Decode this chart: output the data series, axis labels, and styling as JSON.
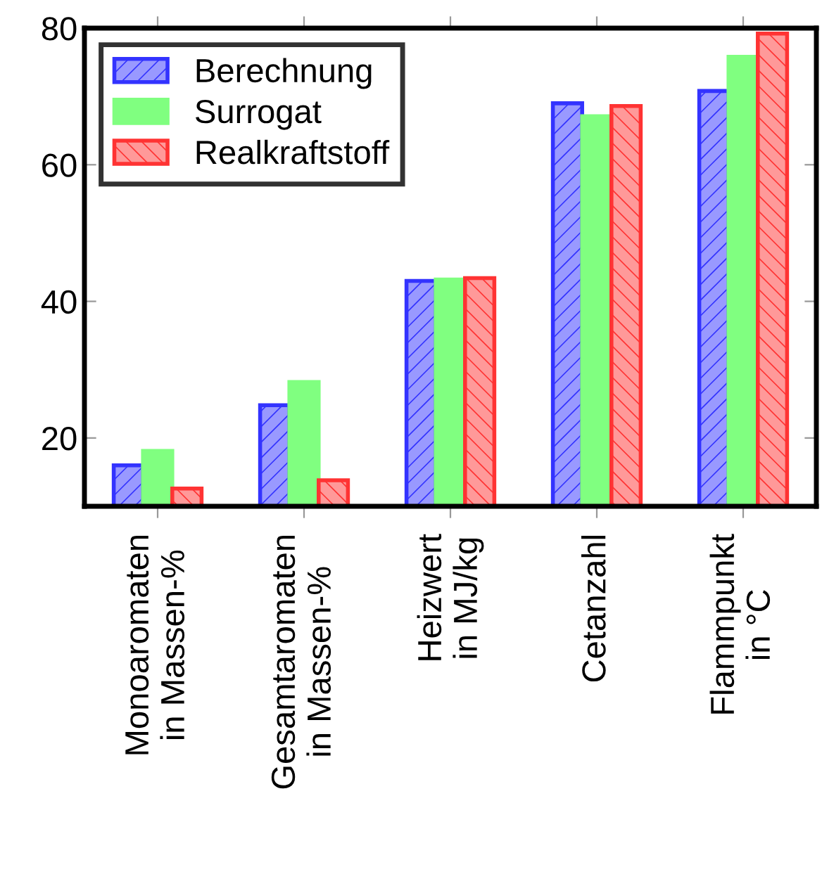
{
  "chart_data": {
    "type": "bar",
    "categories": [
      "Monoaromaten\nin Massen-%",
      "Gesamtaromaten\nin Massen-%",
      "Heizwert\nin MJ/kg",
      "Cetanzahl",
      "Flammpunkt\nin °C"
    ],
    "series": [
      {
        "name": "Berechnung",
        "color": "#3333ff",
        "values": [
          16.0,
          24.8,
          43.0,
          69.0,
          70.8
        ]
      },
      {
        "name": "Surrogat",
        "color": "#80ff80",
        "values": [
          18.1,
          28.2,
          43.2,
          67.1,
          75.8
        ]
      },
      {
        "name": "Realkraftstoff",
        "color": "#ff3333",
        "values": [
          12.6,
          13.8,
          43.4,
          68.6,
          79.2
        ]
      }
    ],
    "ylim": [
      10,
      80
    ],
    "yticks": [
      20,
      40,
      60,
      80
    ],
    "grid": false,
    "legend": "top left"
  }
}
